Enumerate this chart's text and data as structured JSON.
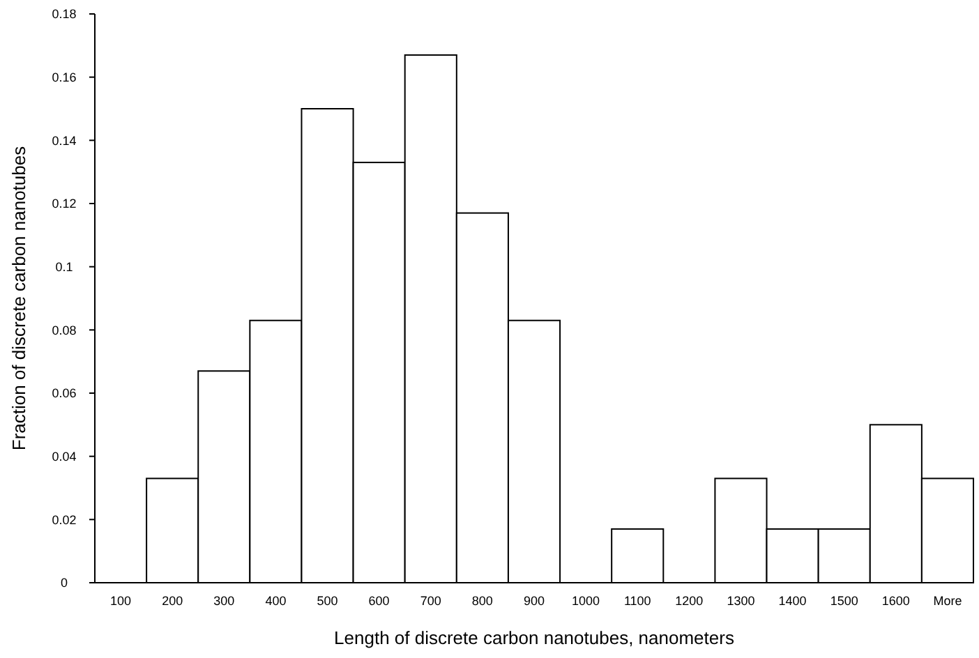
{
  "chart_data": {
    "type": "bar",
    "xlabel": "Length of discrete carbon nanotubes, nanometers",
    "ylabel": "Fraction of discrete carbon nanotubes",
    "categories": [
      "100",
      "200",
      "300",
      "400",
      "500",
      "600",
      "700",
      "800",
      "900",
      "1000",
      "1100",
      "1200",
      "1300",
      "1400",
      "1500",
      "1600",
      "More"
    ],
    "values": [
      0,
      0.033,
      0.067,
      0.083,
      0.15,
      0.133,
      0.167,
      0.117,
      0.083,
      0,
      0.017,
      0,
      0.033,
      0.017,
      0.017,
      0.05,
      0.033
    ],
    "color": "#ffffff",
    "ylim": [
      0,
      0.18
    ],
    "yticks": [
      0,
      0.02,
      0.04,
      0.06,
      0.08,
      0.1,
      0.12,
      0.14,
      0.16,
      0.18
    ],
    "grid": false
  }
}
